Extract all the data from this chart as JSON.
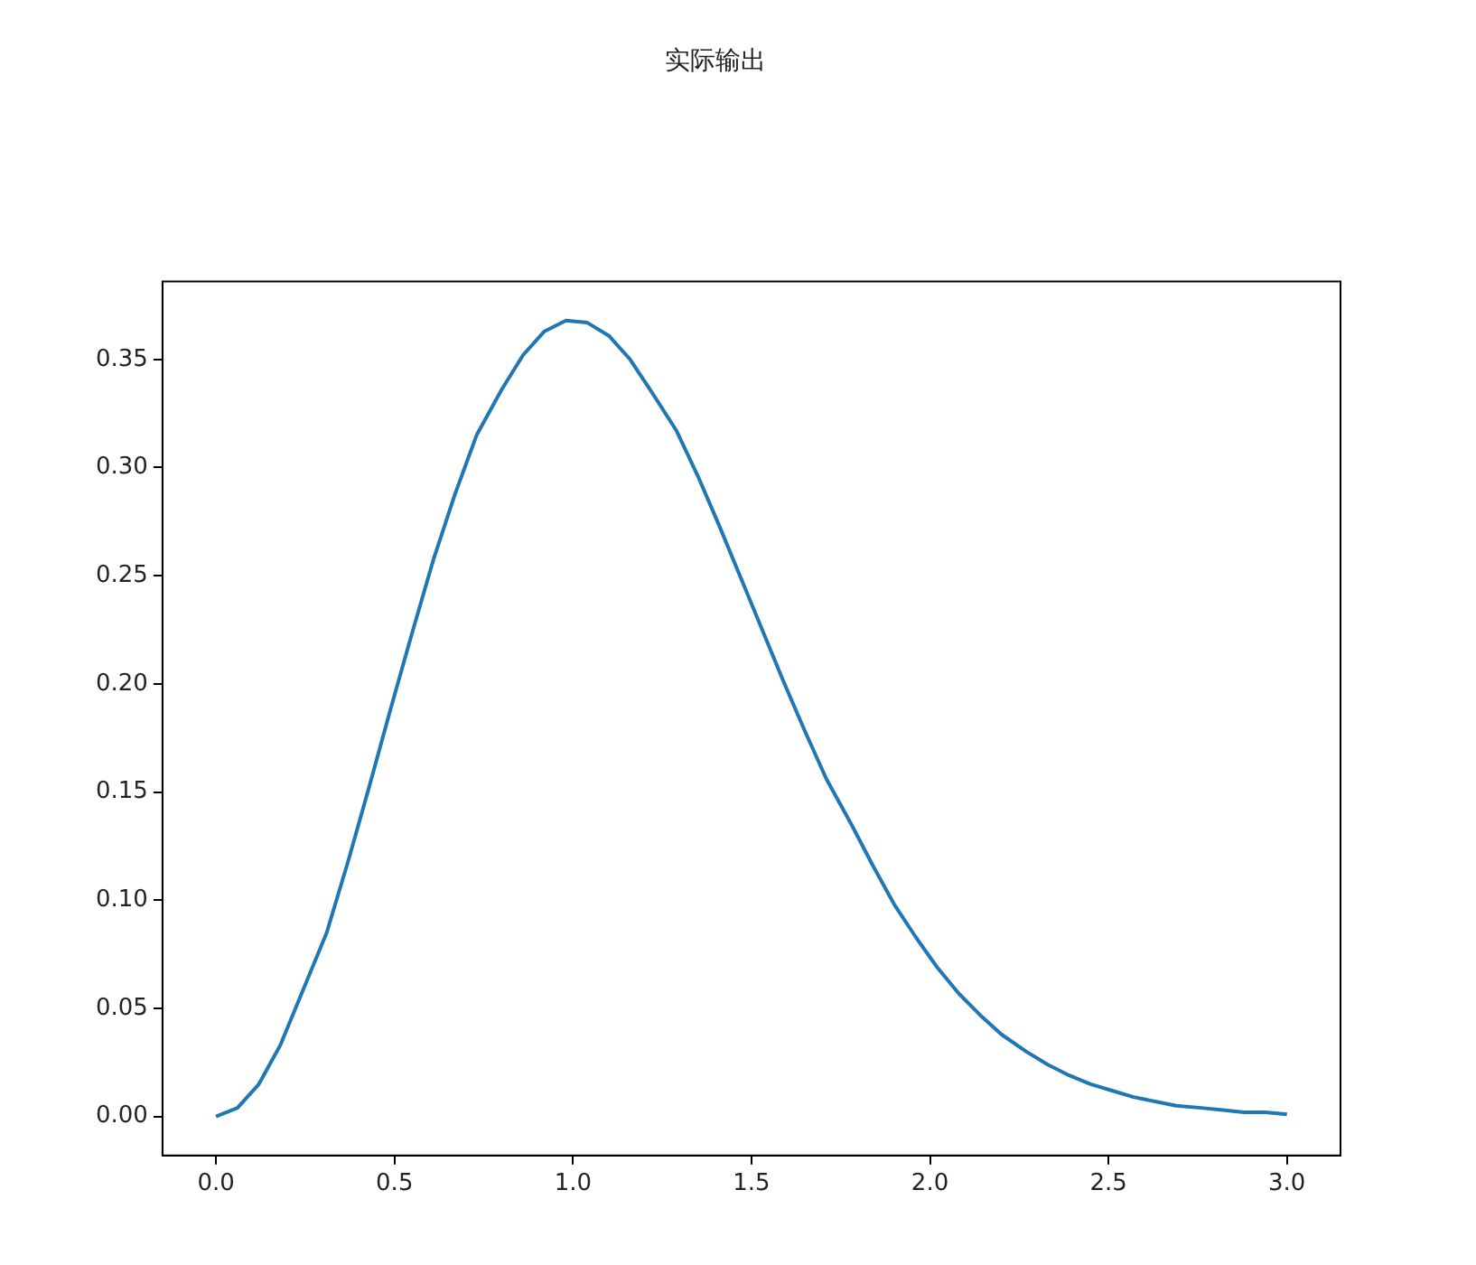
{
  "chart_data": {
    "type": "line",
    "title": "实际输出",
    "x": [
      0,
      0.06,
      0.12,
      0.18,
      0.24,
      0.31,
      0.37,
      0.43,
      0.49,
      0.55,
      0.61,
      0.67,
      0.73,
      0.8,
      0.86,
      0.92,
      0.98,
      1.04,
      1.1,
      1.16,
      1.22,
      1.29,
      1.35,
      1.41,
      1.47,
      1.53,
      1.59,
      1.65,
      1.71,
      1.78,
      1.84,
      1.9,
      1.96,
      2.02,
      2.08,
      2.14,
      2.2,
      2.27,
      2.33,
      2.39,
      2.45,
      2.51,
      2.57,
      2.63,
      2.69,
      2.76,
      2.82,
      2.88,
      2.94,
      3
    ],
    "series": [
      {
        "color": "#1f77b4",
        "values": [
          0,
          0.004,
          0.015,
          0.033,
          0.057,
          0.085,
          0.118,
          0.153,
          0.189,
          0.224,
          0.258,
          0.288,
          0.315,
          0.336,
          0.352,
          0.363,
          0.368,
          0.367,
          0.361,
          0.35,
          0.335,
          0.317,
          0.296,
          0.273,
          0.249,
          0.225,
          0.201,
          0.178,
          0.156,
          0.135,
          0.116,
          0.098,
          0.083,
          0.069,
          0.057,
          0.047,
          0.038,
          0.03,
          0.024,
          0.019,
          0.015,
          0.012,
          0.009,
          0.007,
          0.005,
          0.004,
          0.003,
          0.002,
          0.002,
          0.001
        ]
      }
    ],
    "xlim": [
      -0.15,
      3.15
    ],
    "xticks": [
      {
        "value": 0,
        "label": "0.0"
      },
      {
        "value": 0.5,
        "label": "0.5"
      },
      {
        "value": 1,
        "label": "1.0"
      },
      {
        "value": 1.5,
        "label": "1.5"
      },
      {
        "value": 2,
        "label": "2.0"
      },
      {
        "value": 2.5,
        "label": "2.5"
      },
      {
        "value": 3,
        "label": "3.0"
      }
    ],
    "ylim": [
      -0.018,
      0.386
    ],
    "yticks": [
      {
        "value": 0,
        "label": "0.00"
      },
      {
        "value": 0.05,
        "label": "0.05"
      },
      {
        "value": 0.1,
        "label": "0.10"
      },
      {
        "value": 0.15,
        "label": "0.15"
      },
      {
        "value": 0.2,
        "label": "0.20"
      },
      {
        "value": 0.25,
        "label": "0.25"
      },
      {
        "value": 0.3,
        "label": "0.30"
      },
      {
        "value": 0.35,
        "label": "0.35"
      }
    ],
    "grid": false,
    "legend": false,
    "marker": "none",
    "line_style": "solid"
  }
}
